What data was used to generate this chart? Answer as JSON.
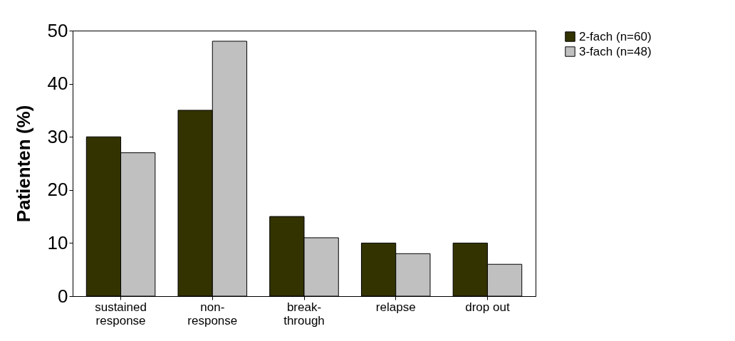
{
  "chart_data": {
    "type": "bar",
    "ylabel": "Patienten (%)",
    "categories": [
      "sustained response",
      "non-response",
      "break-through",
      "relapse",
      "drop out"
    ],
    "series": [
      {
        "name": "2-fach (n=60)",
        "color": "#333300",
        "values": [
          30,
          35,
          15,
          10,
          10
        ]
      },
      {
        "name": "3-fach (n=48)",
        "color": "#c0c0c0",
        "values": [
          27,
          48,
          11,
          8,
          6
        ]
      }
    ],
    "ylim": [
      0,
      50
    ],
    "yticks": [
      0,
      10,
      20,
      30,
      40,
      50
    ],
    "grid": false,
    "legend": "right"
  }
}
